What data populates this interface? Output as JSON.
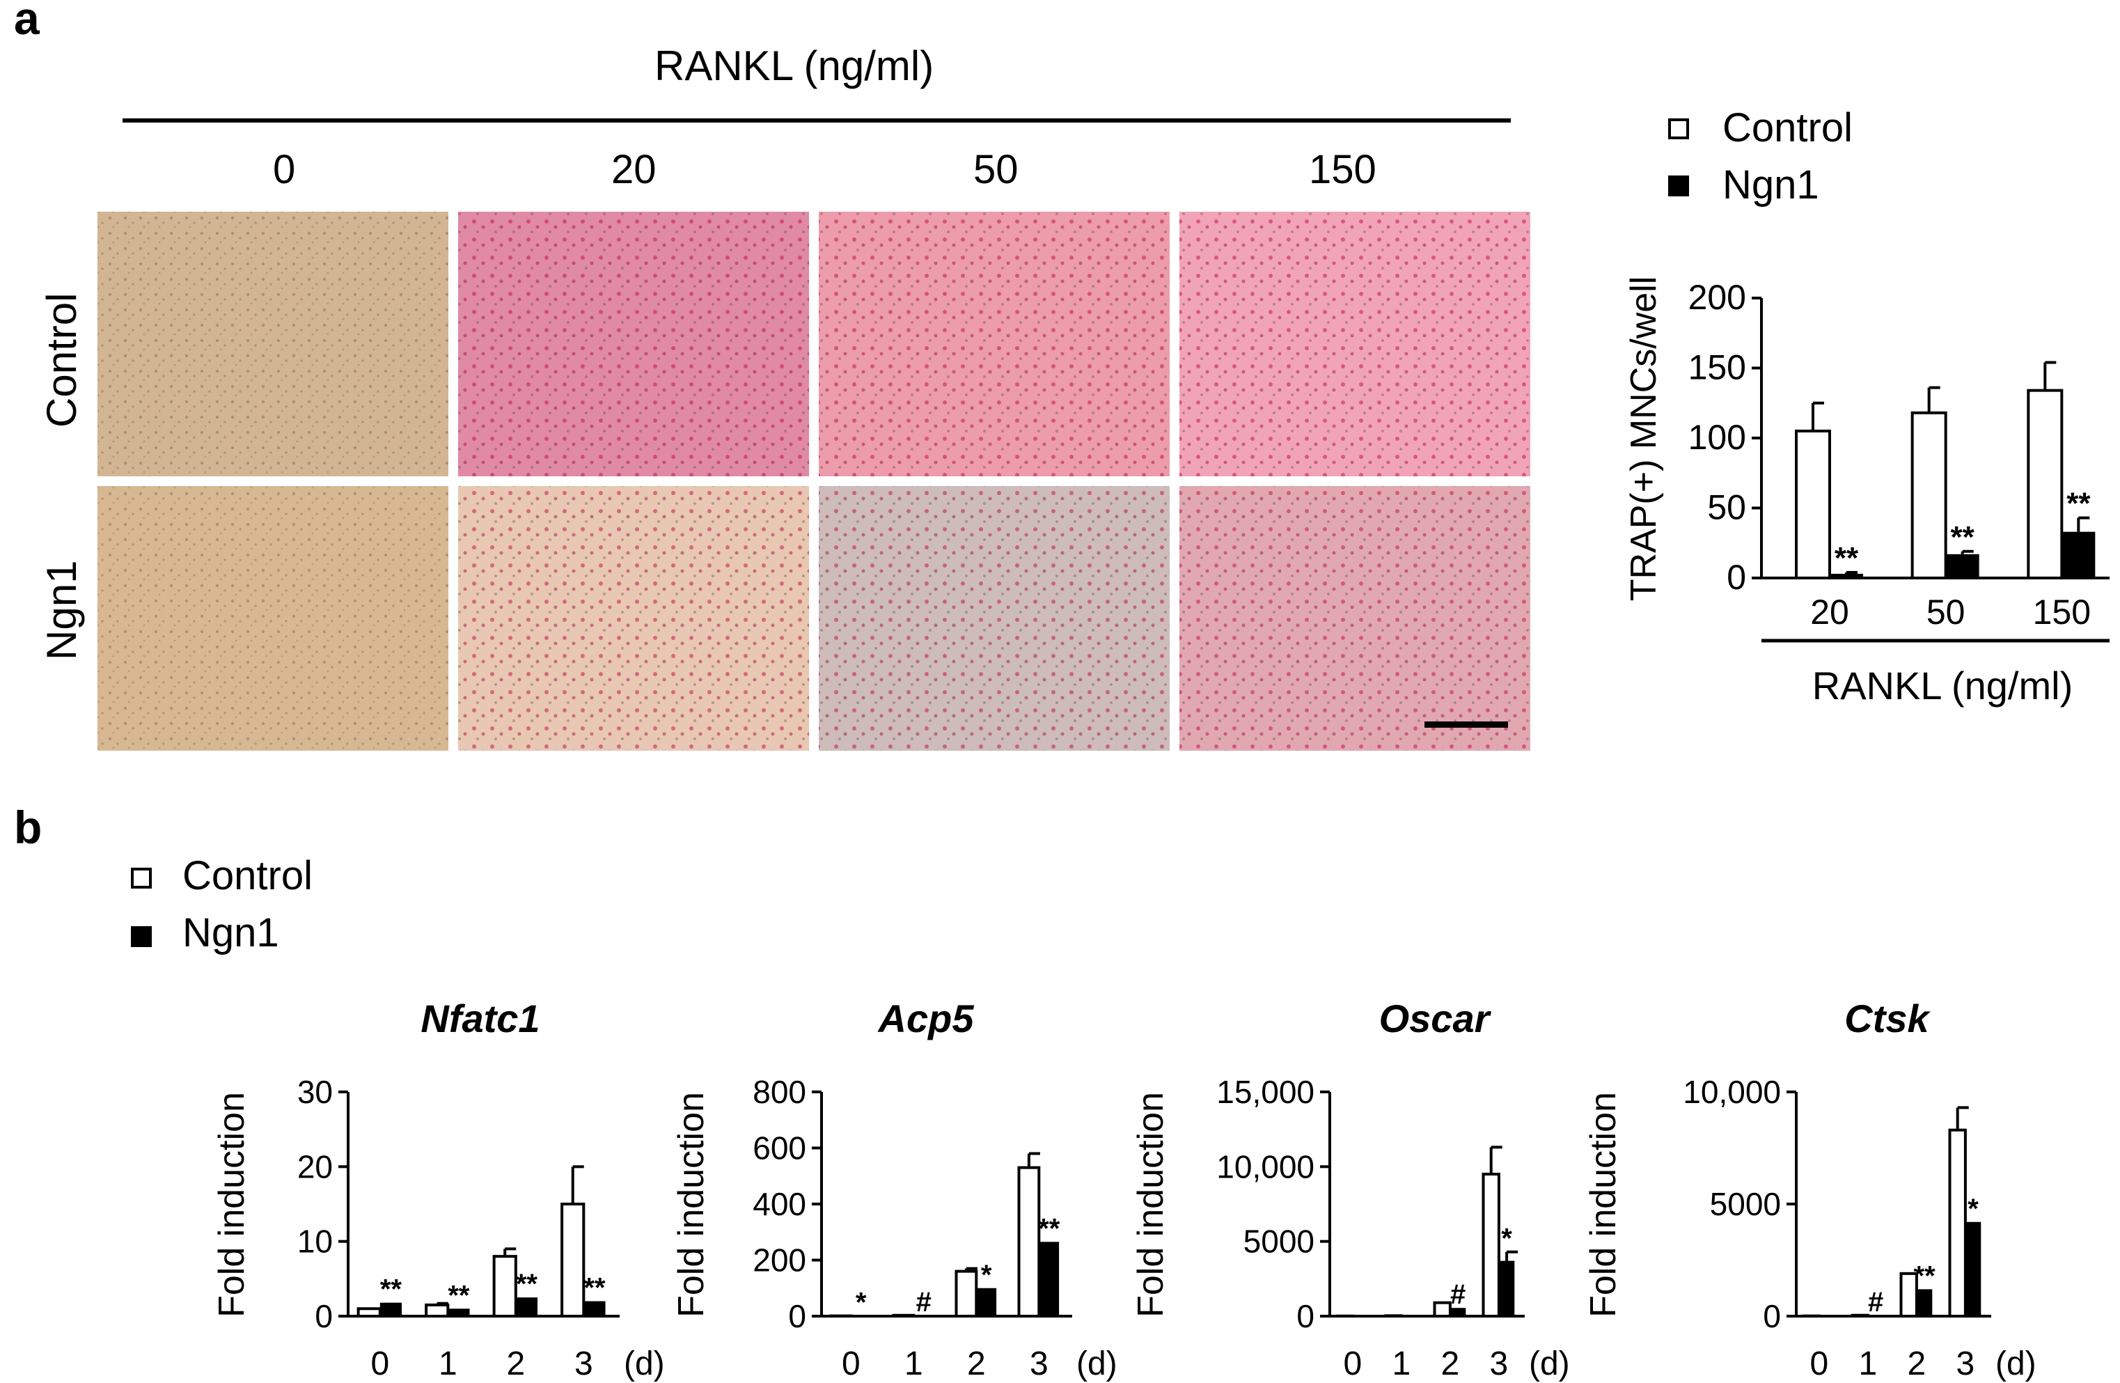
{
  "panel_a": {
    "label": "a",
    "rankl_header": "RANKL (ng/ml)",
    "concentrations": [
      "0",
      "20",
      "50",
      "150"
    ],
    "rows": [
      "Control",
      "Ngn1"
    ],
    "micrograph_colors": {
      "control": [
        "#d2b592",
        "#e08aa6",
        "#ec9cab",
        "#f1a4b7"
      ],
      "ngn1": [
        "#d8b893",
        "#e8c7b3",
        "#cdbcb9",
        "#e1a8b1"
      ]
    }
  },
  "legend_a": {
    "control": "Control",
    "ngn1": "Ngn1"
  },
  "legend_b": {
    "control": "Control",
    "ngn1": "Ngn1"
  },
  "panel_b": {
    "label": "b",
    "day_unit": "(d)",
    "ylabel": "Fold induction"
  },
  "chart_data": [
    {
      "type": "bar",
      "ylabel": "TRAP(+) MNCs/well",
      "xlabel": "RANKL (ng/ml)",
      "categories": [
        "20",
        "50",
        "150"
      ],
      "ylim": [
        0,
        200
      ],
      "yticks": [
        "0",
        "50",
        "100",
        "150",
        "200"
      ],
      "series": [
        {
          "name": "Control",
          "values": [
            105,
            118,
            134
          ],
          "errors": [
            20,
            18,
            20
          ],
          "color": "#ffffff"
        },
        {
          "name": "Ngn1",
          "values": [
            3,
            17,
            33
          ],
          "errors": [
            1,
            2,
            10
          ],
          "color": "#000000",
          "annotations": [
            "**",
            "**",
            "**"
          ]
        }
      ]
    },
    {
      "type": "bar",
      "title": "Nfatc1",
      "ylabel": "Fold induction",
      "categories": [
        "0",
        "1",
        "2",
        "3"
      ],
      "ylim": [
        0,
        30
      ],
      "yticks": [
        "0",
        "10",
        "20",
        "30"
      ],
      "series": [
        {
          "name": "Control",
          "values": [
            1,
            1.5,
            8,
            15
          ],
          "errors": [
            0,
            0.2,
            1,
            5
          ]
        },
        {
          "name": "Ngn1",
          "values": [
            1.8,
            1,
            2.5,
            2
          ],
          "errors": [
            0,
            0,
            0,
            0
          ],
          "annotations": [
            "**",
            "**",
            "**",
            "**"
          ]
        }
      ]
    },
    {
      "type": "bar",
      "title": "Acp5",
      "ylabel": "Fold induction",
      "categories": [
        "0",
        "1",
        "2",
        "3"
      ],
      "ylim": [
        0,
        800
      ],
      "yticks": [
        "0",
        "200",
        "400",
        "600",
        "800"
      ],
      "series": [
        {
          "name": "Control",
          "values": [
            1,
            3,
            160,
            530
          ],
          "errors": [
            0,
            0,
            10,
            50
          ]
        },
        {
          "name": "Ngn1",
          "values": [
            1,
            2,
            100,
            265
          ],
          "errors": [
            0,
            0,
            0,
            0
          ],
          "annotations": [
            "*",
            "#",
            "*",
            "**"
          ]
        }
      ]
    },
    {
      "type": "bar",
      "title": "Oscar",
      "ylabel": "Fold induction",
      "categories": [
        "0",
        "1",
        "2",
        "3"
      ],
      "ylim": [
        0,
        15000
      ],
      "yticks": [
        "0",
        "5000",
        "10,000",
        "15,000"
      ],
      "series": [
        {
          "name": "Control",
          "values": [
            10,
            30,
            900,
            9500
          ],
          "errors": [
            0,
            0,
            0,
            1800
          ]
        },
        {
          "name": "Ngn1",
          "values": [
            10,
            20,
            550,
            3700
          ],
          "errors": [
            0,
            0,
            0,
            600
          ],
          "annotations": [
            "",
            "",
            "#",
            "*"
          ]
        }
      ]
    },
    {
      "type": "bar",
      "title": "Ctsk",
      "ylabel": "Fold induction",
      "categories": [
        "0",
        "1",
        "2",
        "3"
      ],
      "ylim": [
        0,
        10000
      ],
      "yticks": [
        "0",
        "5000",
        "10,000"
      ],
      "series": [
        {
          "name": "Control",
          "values": [
            10,
            40,
            1900,
            8300
          ],
          "errors": [
            0,
            0,
            0,
            1000
          ]
        },
        {
          "name": "Ngn1",
          "values": [
            10,
            30,
            1200,
            4200
          ],
          "errors": [
            0,
            0,
            0,
            0
          ],
          "annotations": [
            "",
            "#",
            "**",
            "*"
          ]
        }
      ]
    }
  ]
}
